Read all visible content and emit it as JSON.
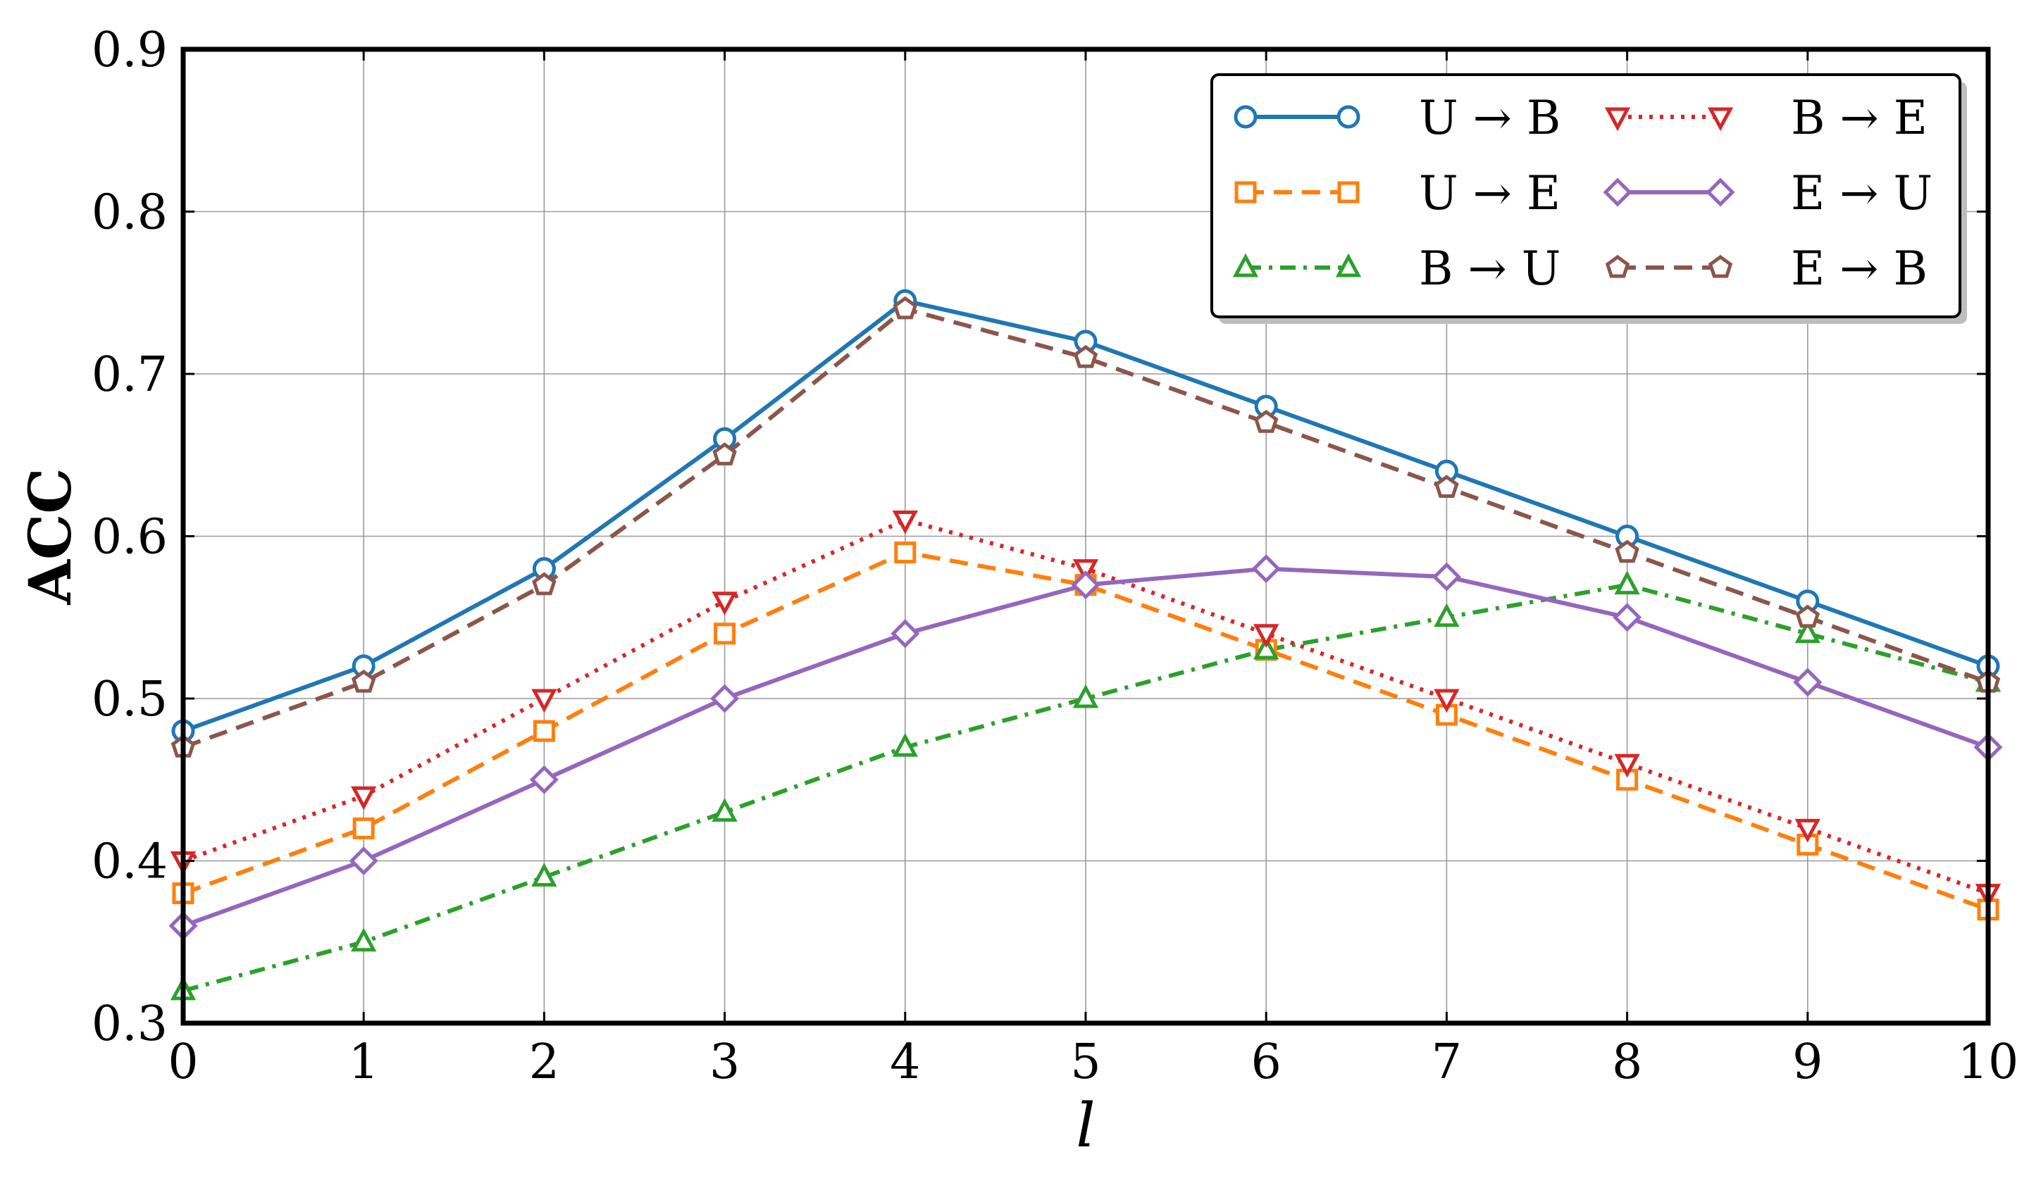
{
  "chart_data": {
    "type": "line",
    "xlabel": "l",
    "ylabel": "ACC",
    "xlim": [
      0,
      10
    ],
    "ylim": [
      0.3,
      0.9
    ],
    "x": [
      0,
      1,
      2,
      3,
      4,
      5,
      6,
      7,
      8,
      9,
      10
    ],
    "x_ticks": [
      "0",
      "1",
      "2",
      "3",
      "4",
      "5",
      "6",
      "7",
      "8",
      "9",
      "10"
    ],
    "y_ticks": [
      "0.3",
      "0.4",
      "0.5",
      "0.6",
      "0.7",
      "0.8",
      "0.9"
    ],
    "grid": true,
    "legend_position": "top-right",
    "series": [
      {
        "name": "U → B",
        "color": "#1f77b4",
        "dash": "solid",
        "marker": "circle",
        "values": [
          0.48,
          0.52,
          0.58,
          0.66,
          0.745,
          0.72,
          0.68,
          0.64,
          0.6,
          0.56,
          0.52
        ]
      },
      {
        "name": "U → E",
        "color": "#ff7f0e",
        "dash": "dashed",
        "marker": "square",
        "values": [
          0.38,
          0.42,
          0.48,
          0.54,
          0.59,
          0.57,
          0.53,
          0.49,
          0.45,
          0.41,
          0.37
        ]
      },
      {
        "name": "B → U",
        "color": "#2ca02c",
        "dash": "dashdot",
        "marker": "triangle-up",
        "values": [
          0.32,
          0.35,
          0.39,
          0.43,
          0.47,
          0.5,
          0.53,
          0.55,
          0.57,
          0.54,
          0.51
        ]
      },
      {
        "name": "B → E",
        "color": "#d62728",
        "dash": "dotted",
        "marker": "triangle-down",
        "values": [
          0.4,
          0.44,
          0.5,
          0.56,
          0.61,
          0.58,
          0.54,
          0.5,
          0.46,
          0.42,
          0.38
        ]
      },
      {
        "name": "E → U",
        "color": "#9467bd",
        "dash": "solid",
        "marker": "diamond",
        "values": [
          0.36,
          0.4,
          0.45,
          0.5,
          0.54,
          0.57,
          0.58,
          0.575,
          0.55,
          0.51,
          0.47
        ]
      },
      {
        "name": "E → B",
        "color": "#8c564b",
        "dash": "dashed",
        "marker": "pentagon",
        "values": [
          0.47,
          0.51,
          0.57,
          0.65,
          0.74,
          0.71,
          0.67,
          0.63,
          0.59,
          0.55,
          0.51
        ]
      }
    ]
  }
}
